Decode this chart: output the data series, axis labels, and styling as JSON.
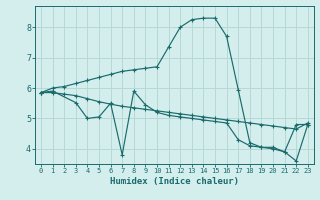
{
  "xlabel": "Humidex (Indice chaleur)",
  "bg_color": "#d4eeee",
  "line_color": "#1a6b6b",
  "grid_color": "#b8d8d8",
  "xlim": [
    -0.5,
    23.5
  ],
  "ylim": [
    3.5,
    8.7
  ],
  "yticks": [
    4,
    5,
    6,
    7,
    8
  ],
  "xticks": [
    0,
    1,
    2,
    3,
    4,
    5,
    6,
    7,
    8,
    9,
    10,
    11,
    12,
    13,
    14,
    15,
    16,
    17,
    18,
    19,
    20,
    21,
    22,
    23
  ],
  "curve1_x": [
    0,
    1,
    2,
    3,
    4,
    5,
    6,
    7,
    8,
    9,
    10,
    11,
    12,
    13,
    14,
    15,
    16,
    17,
    18,
    19,
    20,
    21,
    22,
    23
  ],
  "curve1_y": [
    5.85,
    6.0,
    6.05,
    6.15,
    6.25,
    6.35,
    6.45,
    6.55,
    6.6,
    6.65,
    6.7,
    7.35,
    8.0,
    8.25,
    8.3,
    8.3,
    7.7,
    5.95,
    4.2,
    4.05,
    4.05,
    3.9,
    4.8,
    4.8
  ],
  "curve2_x": [
    0,
    1,
    3,
    4,
    5,
    6,
    7,
    8,
    9,
    10,
    11,
    12,
    13,
    14,
    15,
    16,
    17,
    18,
    19,
    20,
    21,
    22,
    23
  ],
  "curve2_y": [
    5.85,
    5.9,
    5.52,
    5.0,
    5.05,
    5.5,
    3.8,
    5.9,
    5.45,
    5.2,
    5.1,
    5.05,
    5.0,
    4.95,
    4.9,
    4.85,
    4.3,
    4.1,
    4.05,
    4.0,
    3.9,
    3.6,
    4.8
  ],
  "curve3_x": [
    0,
    1,
    2,
    3,
    4,
    5,
    6,
    7,
    8,
    9,
    10,
    11,
    12,
    13,
    14,
    15,
    16,
    17,
    18,
    19,
    20,
    21,
    22,
    23
  ],
  "curve3_y": [
    5.85,
    5.85,
    5.8,
    5.75,
    5.65,
    5.55,
    5.47,
    5.4,
    5.35,
    5.3,
    5.25,
    5.2,
    5.15,
    5.1,
    5.05,
    5.0,
    4.95,
    4.9,
    4.85,
    4.8,
    4.75,
    4.7,
    4.65,
    4.85
  ]
}
